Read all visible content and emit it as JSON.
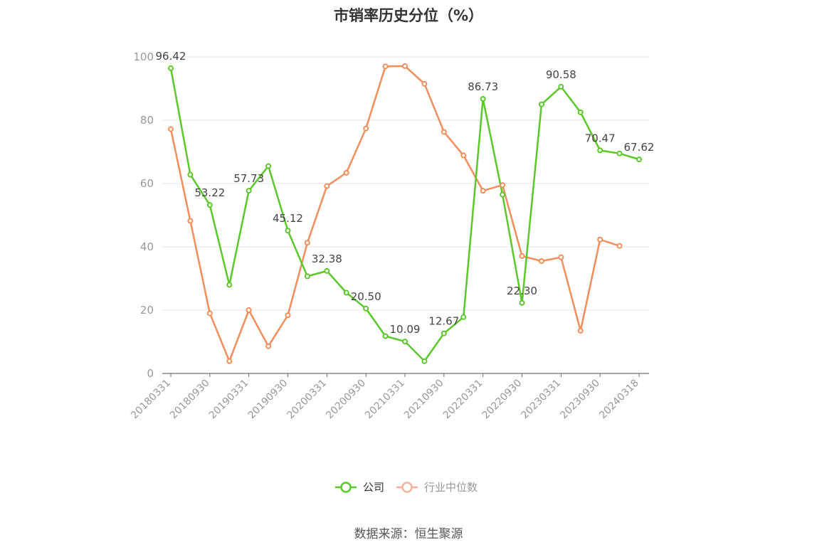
{
  "title": "市销率历史分位（%）",
  "source": "数据来源：恒生聚源",
  "chart_data": {
    "type": "line",
    "title": "市销率历史分位（%）",
    "xlabel": "",
    "ylabel": "",
    "ylim": [
      0,
      100
    ],
    "yticks": [
      0,
      20,
      40,
      60,
      80,
      100
    ],
    "grid": true,
    "legend_position": "bottom",
    "x": [
      "20180331",
      "20180630",
      "20180930",
      "20181231",
      "20190331",
      "20190630",
      "20190930",
      "20191231",
      "20200331",
      "20200630",
      "20200930",
      "20201231",
      "20210331",
      "20210630",
      "20210930",
      "20211231",
      "20220331",
      "20220630",
      "20220930",
      "20221231",
      "20230331",
      "20230630",
      "20230930",
      "20231231",
      "20240318"
    ],
    "xtick_labels": [
      "20180331",
      "20180930",
      "20190331",
      "20190930",
      "20200331",
      "20200930",
      "20210331",
      "20210930",
      "20220331",
      "20220930",
      "20230331",
      "20230930",
      "20240318"
    ],
    "series": [
      {
        "name": "公司",
        "color": "#5cc72a",
        "values": [
          96.42,
          62.8,
          53.22,
          28.0,
          57.73,
          65.5,
          45.12,
          30.7,
          32.38,
          25.5,
          20.5,
          11.8,
          10.09,
          3.9,
          12.67,
          17.8,
          86.73,
          56.5,
          22.3,
          85.0,
          90.58,
          82.5,
          70.47,
          69.5,
          67.62
        ],
        "labels": [
          "96.42",
          "",
          "53.22",
          "",
          "57.73",
          "",
          "45.12",
          "",
          "32.38",
          "",
          "20.50",
          "",
          "10.09",
          "",
          "12.67",
          "",
          "86.73",
          "",
          "22.30",
          "",
          "90.58",
          "",
          "70.47",
          "",
          "67.62"
        ]
      },
      {
        "name": "行业中位数",
        "color": "#f28e5c",
        "values": [
          77.2,
          48.2,
          19.0,
          3.9,
          20.0,
          8.6,
          18.4,
          41.3,
          59.2,
          63.4,
          77.4,
          97.0,
          97.1,
          91.5,
          76.3,
          68.9,
          57.7,
          59.5,
          37.1,
          35.5,
          36.7,
          13.5,
          42.3,
          40.3,
          null
        ]
      }
    ]
  }
}
